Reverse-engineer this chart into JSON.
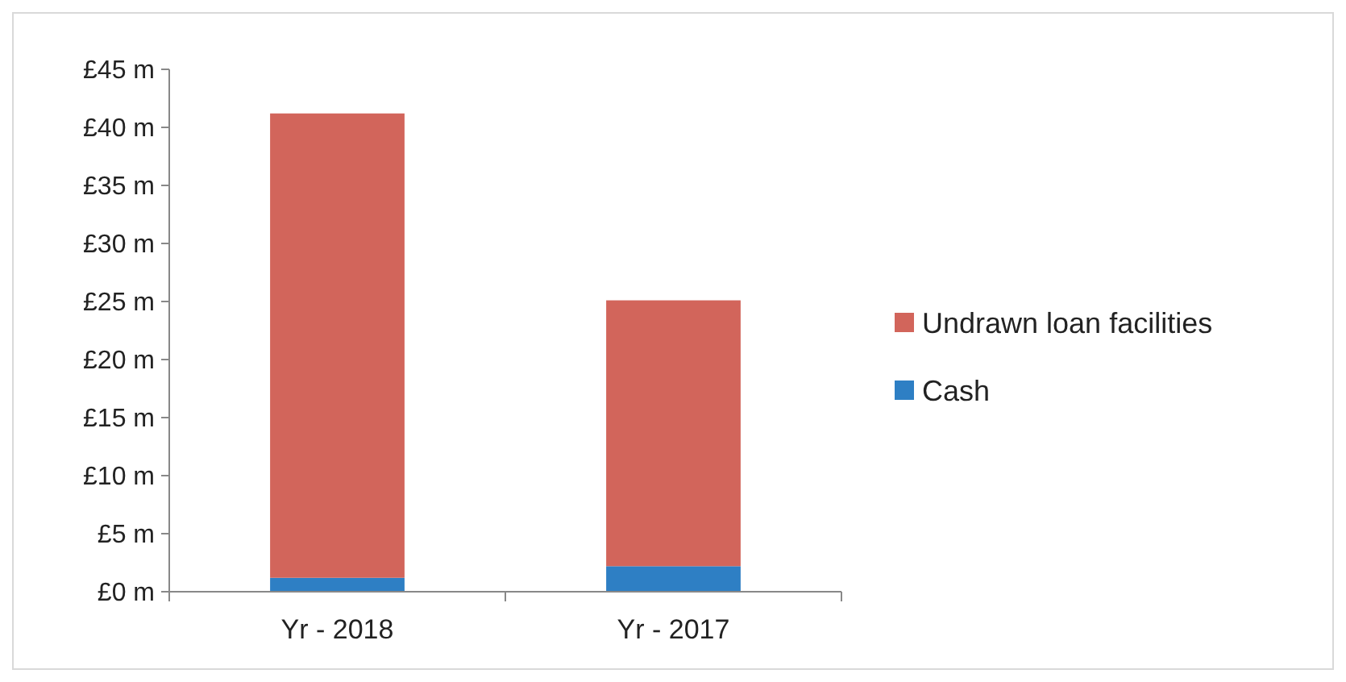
{
  "chart_data": {
    "type": "bar",
    "stacked": true,
    "categories": [
      "Yr - 2018",
      "Yr - 2017"
    ],
    "series": [
      {
        "name": "Cash",
        "color": "#2e7fc4",
        "values": [
          1.2,
          2.2
        ]
      },
      {
        "name": "Undrawn loan facilities",
        "color": "#d2655b",
        "values": [
          40.0,
          22.9
        ]
      }
    ],
    "ylim": [
      0,
      45
    ],
    "yticks": [
      {
        "value": 0,
        "label": "£0 m"
      },
      {
        "value": 5,
        "label": "£5 m"
      },
      {
        "value": 10,
        "label": "£10 m"
      },
      {
        "value": 15,
        "label": "£15 m"
      },
      {
        "value": 20,
        "label": "£20 m"
      },
      {
        "value": 25,
        "label": "£25 m"
      },
      {
        "value": 30,
        "label": "£30 m"
      },
      {
        "value": 35,
        "label": "£35 m"
      },
      {
        "value": 40,
        "label": "£40 m"
      },
      {
        "value": 45,
        "label": "£45 m"
      }
    ],
    "grid": false,
    "legend": "right"
  }
}
